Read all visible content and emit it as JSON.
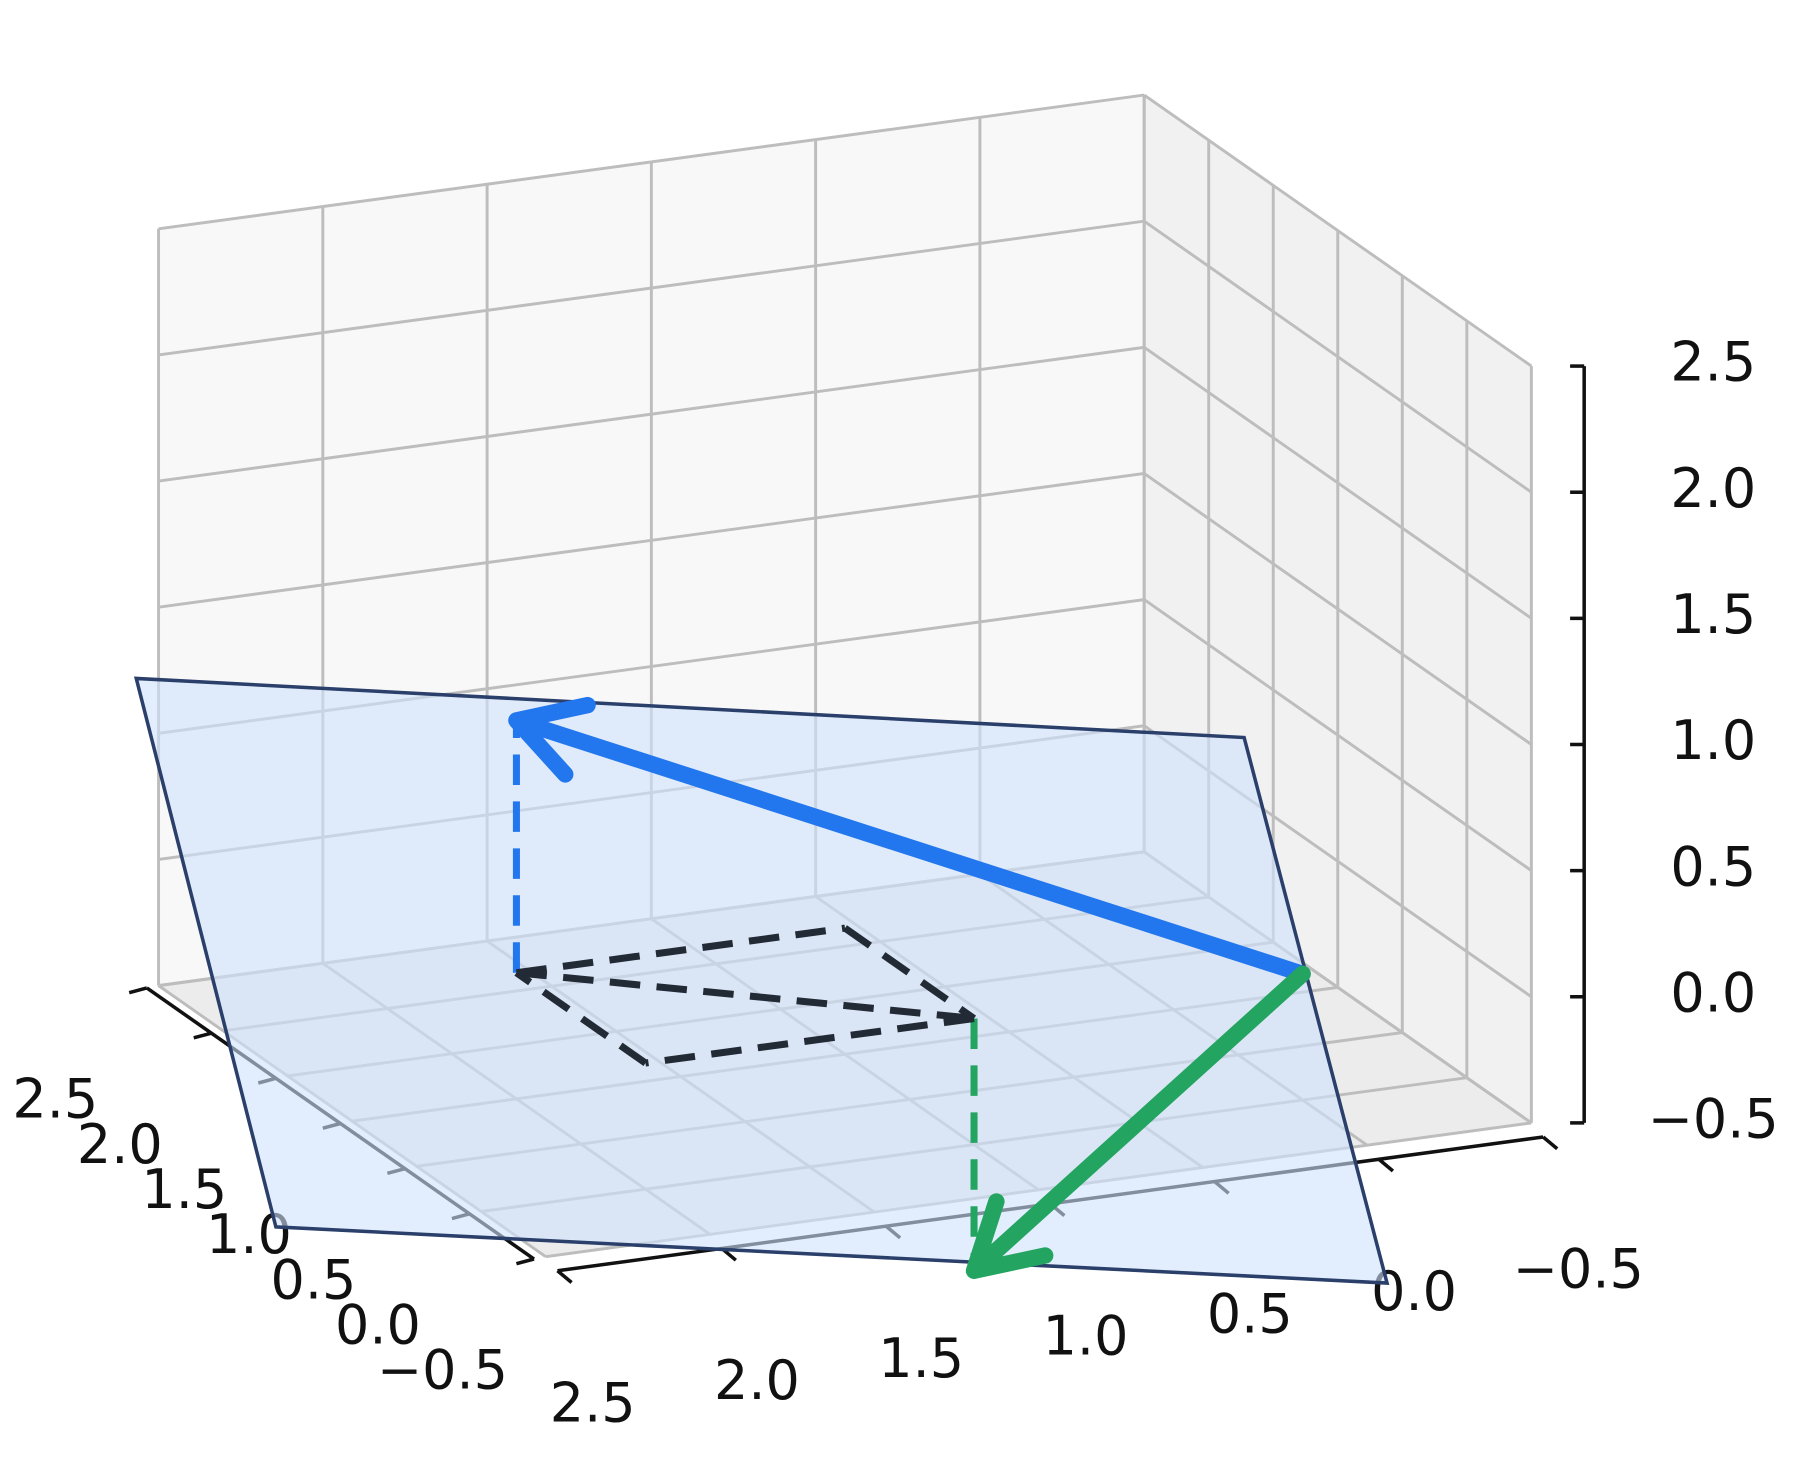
{
  "chart_data": {
    "type": "quiver3d",
    "xlim": [
      -0.5,
      2.5
    ],
    "ylim": [
      -0.5,
      2.5
    ],
    "zlim": [
      -0.5,
      2.5
    ],
    "xticks": [
      {
        "value": -0.5,
        "label": "−0.5"
      },
      {
        "value": 0,
        "label": "0.0"
      },
      0.5,
      {
        "value": 1,
        "label": "1.0"
      },
      1.5,
      {
        "value": 2,
        "label": "2.0"
      },
      2.5
    ],
    "yticks": [
      {
        "value": -0.5,
        "label": "−0.5"
      },
      {
        "value": 0,
        "label": "0.0"
      },
      0.5,
      {
        "value": 1,
        "label": "1.0"
      },
      1.5,
      {
        "value": 2,
        "label": "2.0"
      },
      2.5
    ],
    "zticks": [
      {
        "value": -0.5,
        "label": "−0.5"
      },
      {
        "value": 0,
        "label": "0.0"
      },
      0.5,
      {
        "value": 1,
        "label": "1.0"
      },
      1.5,
      {
        "value": 2,
        "label": "2.0"
      },
      2.5
    ],
    "grid": true,
    "origin": [
      0,
      0,
      0
    ],
    "vectors": [
      {
        "color": "#2377ee",
        "values": [
          2,
          1,
          1
        ]
      },
      {
        "color": "#23a460",
        "values": [
          1,
          0,
          -1
        ]
      }
    ],
    "plane": {
      "color": "#cfe2fb",
      "edge_color": "#2b3f6b",
      "vertices": [
        [
          3,
          1.4,
          1.2
        ],
        [
          0.06,
          0.3,
          0.84
        ],
        [
          -0.1,
          -0.4,
          -1.1
        ],
        [
          2.85,
          0.7,
          -0.75
        ]
      ]
    },
    "dashed_lines": [
      {
        "color": "#2377ee",
        "points": [
          [
            2,
            1,
            0
          ],
          [
            2,
            1,
            1
          ]
        ]
      },
      {
        "color": "#23a460",
        "points": [
          [
            1,
            0,
            0
          ],
          [
            1,
            0,
            -1
          ]
        ]
      },
      {
        "color": "#222a36",
        "points": [
          [
            1,
            0,
            0
          ],
          [
            2,
            0,
            0
          ]
        ]
      },
      {
        "color": "#222a36",
        "points": [
          [
            2,
            0,
            0
          ],
          [
            2,
            1,
            0
          ]
        ]
      },
      {
        "color": "#222a36",
        "points": [
          [
            2,
            1,
            0
          ],
          [
            1,
            1,
            0
          ]
        ]
      },
      {
        "color": "#222a36",
        "points": [
          [
            1,
            1,
            0
          ],
          [
            1,
            0,
            0
          ]
        ]
      },
      {
        "color": "#222a36",
        "points": [
          [
            2,
            1,
            0
          ],
          [
            1,
            0,
            0
          ]
        ]
      }
    ]
  }
}
